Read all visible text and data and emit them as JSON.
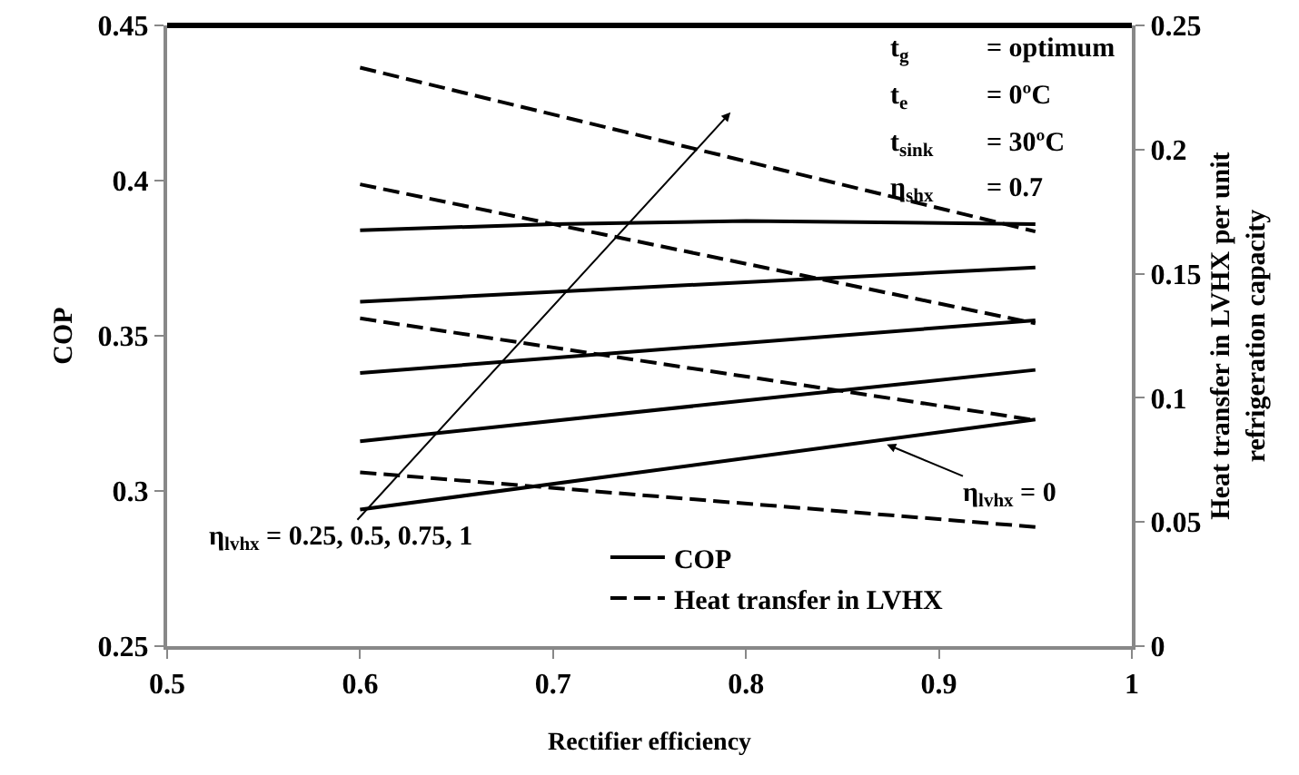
{
  "chart_data": {
    "type": "line",
    "xlabel": "Rectifier efficiency",
    "ylabel": "COP",
    "y2label": "Heat transfer in LVHX per unit\nrefrigeration capacity",
    "xlim": [
      0.5,
      1
    ],
    "xticks": [
      0.5,
      0.6,
      0.7,
      0.8,
      0.9,
      1
    ],
    "ylim": [
      0.25,
      0.45
    ],
    "yticks": [
      0.25,
      0.3,
      0.35,
      0.4,
      0.45
    ],
    "y2lim": [
      0,
      0.25
    ],
    "y2ticks": [
      0,
      0.05,
      0.1,
      0.15,
      0.2,
      0.25
    ],
    "grid": false,
    "legend": "bottom",
    "marker": "none",
    "series": [
      {
        "name": "COP",
        "color": "#000000",
        "line_style": "solid",
        "x": [
          0.6,
          0.7,
          0.8,
          0.95
        ],
        "values": [
          0.384,
          0.386,
          0.387,
          0.386
        ]
      },
      {
        "color": "#000000",
        "line_style": "solid",
        "x": [
          0.6,
          0.95
        ],
        "values": [
          0.361,
          0.372
        ]
      },
      {
        "color": "#000000",
        "line_style": "solid",
        "x": [
          0.6,
          0.95
        ],
        "values": [
          0.338,
          0.355
        ]
      },
      {
        "color": "#000000",
        "line_style": "solid",
        "x": [
          0.6,
          0.95
        ],
        "values": [
          0.316,
          0.339
        ]
      },
      {
        "color": "#000000",
        "line_style": "solid",
        "x": [
          0.6,
          0.95
        ],
        "values": [
          0.294,
          0.323
        ]
      },
      {
        "name": "Heat transfer in LVHX",
        "color": "#000000",
        "line_style": "dashed",
        "axis": "y2",
        "x": [
          0.6,
          0.95
        ],
        "values": [
          0.233,
          0.167
        ]
      },
      {
        "color": "#000000",
        "line_style": "dashed",
        "axis": "y2",
        "x": [
          0.6,
          0.95
        ],
        "values": [
          0.186,
          0.13
        ]
      },
      {
        "color": "#000000",
        "line_style": "dashed",
        "axis": "y2",
        "x": [
          0.6,
          0.95
        ],
        "values": [
          0.132,
          0.091
        ]
      },
      {
        "color": "#000000",
        "line_style": "dashed",
        "axis": "y2",
        "x": [
          0.6,
          0.95
        ],
        "values": [
          0.07,
          0.048
        ]
      }
    ],
    "annotations": [
      "t$_{g}$ = optimum",
      "t$_{e}$ = 0ºC",
      "t$_{sink}$ = 30ºC",
      "η$_{shx}$ = 0.7",
      "η$_{lvhx}$ = 0.25, 0.5, 0.75, 1",
      {
        "text": "η$_{lvhx}$ = 0",
        "x": 0.873,
        "y": 0.315
      }
    ]
  }
}
